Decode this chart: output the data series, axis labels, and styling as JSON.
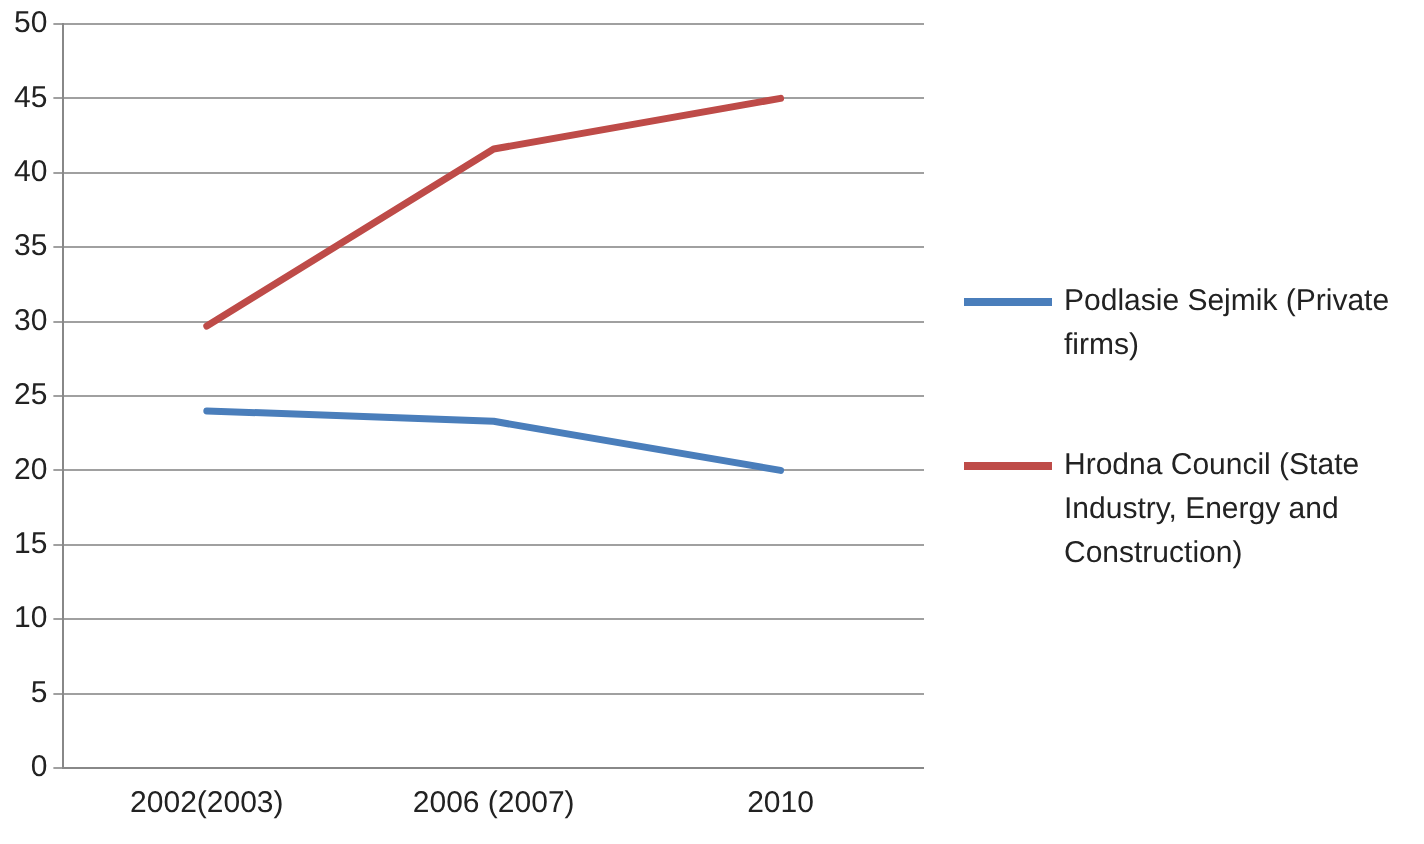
{
  "chart_data": {
    "type": "line",
    "categories": [
      "2002(2003)",
      "2006 (2007)",
      "2010"
    ],
    "series": [
      {
        "name": "Podlasie Sejmik (Private firms)",
        "color": "#4a7ebb",
        "values": [
          24,
          23.3,
          20
        ]
      },
      {
        "name": "Hrodna Council (State Industry, Energy and Construction)",
        "color": "#be4b48",
        "values": [
          29.7,
          41.6,
          45
        ]
      }
    ],
    "ylim": [
      0,
      50
    ],
    "yticks": [
      0,
      5,
      10,
      15,
      20,
      25,
      30,
      35,
      40,
      45,
      50
    ],
    "grid": "y",
    "legend": "right",
    "marker": "none",
    "line_style": "solid"
  }
}
